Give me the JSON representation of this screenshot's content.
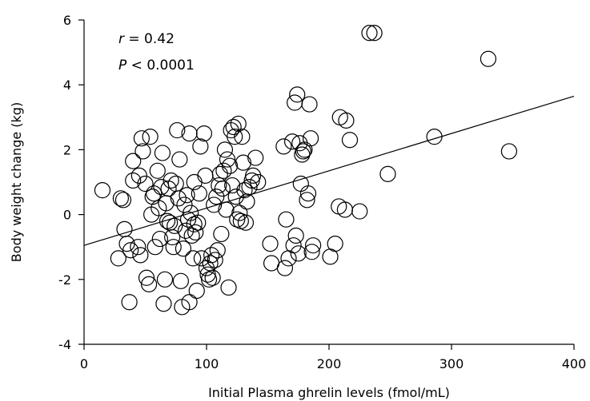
{
  "chart_data": {
    "type": "scatter",
    "title": "",
    "xlabel": "Initial Plasma ghrelin levels (fmol/mL)",
    "ylabel": "Body weight change (kg)",
    "xlim": [
      0,
      400
    ],
    "ylim": [
      -4,
      6
    ],
    "xticks": [
      0,
      100,
      200,
      300,
      400
    ],
    "yticks": [
      -4,
      -2,
      0,
      2,
      4,
      6
    ],
    "grid": false,
    "legend": "none",
    "annotations": {
      "r_symbol": "r",
      "r_rest": " = 0.42",
      "p_symbol": "P",
      "p_rest": " < 0.0001"
    },
    "trendline": {
      "x": [
        0,
        400
      ],
      "y": [
        -0.95,
        3.65
      ]
    },
    "marker_color": "#000000",
    "points": [
      [
        15,
        0.75
      ],
      [
        28,
        -1.35
      ],
      [
        30,
        0.5
      ],
      [
        32,
        0.45
      ],
      [
        33,
        -0.45
      ],
      [
        35,
        -0.9
      ],
      [
        37,
        -2.7
      ],
      [
        38,
        -1.1
      ],
      [
        40,
        1.05
      ],
      [
        40,
        1.65
      ],
      [
        44,
        -1.0
      ],
      [
        45,
        1.2
      ],
      [
        46,
        -1.25
      ],
      [
        47,
        2.35
      ],
      [
        48,
        1.95
      ],
      [
        50,
        0.95
      ],
      [
        51,
        -1.95
      ],
      [
        53,
        -2.15
      ],
      [
        54,
        2.4
      ],
      [
        55,
        0.0
      ],
      [
        56,
        0.55
      ],
      [
        57,
        0.65
      ],
      [
        58,
        -1.0
      ],
      [
        60,
        1.35
      ],
      [
        61,
        0.2
      ],
      [
        62,
        -0.75
      ],
      [
        63,
        0.85
      ],
      [
        64,
        1.9
      ],
      [
        65,
        -2.75
      ],
      [
        66,
        -2.0
      ],
      [
        67,
        0.35
      ],
      [
        68,
        -0.2
      ],
      [
        69,
        0.8
      ],
      [
        70,
        -0.25
      ],
      [
        71,
        1.05
      ],
      [
        72,
        -0.7
      ],
      [
        73,
        -1.0
      ],
      [
        74,
        -0.35
      ],
      [
        75,
        0.95
      ],
      [
        76,
        2.6
      ],
      [
        77,
        0.5
      ],
      [
        78,
        1.7
      ],
      [
        79,
        -2.05
      ],
      [
        80,
        -2.85
      ],
      [
        81,
        -1.05
      ],
      [
        82,
        0.3
      ],
      [
        83,
        -0.5
      ],
      [
        84,
        0.6
      ],
      [
        85,
        -0.15
      ],
      [
        86,
        -2.7
      ],
      [
        86,
        2.5
      ],
      [
        87,
        0.05
      ],
      [
        88,
        -0.65
      ],
      [
        89,
        -1.35
      ],
      [
        90,
        -0.3
      ],
      [
        90,
        1.0
      ],
      [
        91,
        -0.55
      ],
      [
        92,
        -2.35
      ],
      [
        93,
        -0.25
      ],
      [
        94,
        0.65
      ],
      [
        95,
        2.1
      ],
      [
        96,
        -1.35
      ],
      [
        98,
        2.5
      ],
      [
        99,
        1.2
      ],
      [
        100,
        -1.65
      ],
      [
        101,
        -1.85
      ],
      [
        102,
        -2.0
      ],
      [
        103,
        -1.5
      ],
      [
        104,
        -1.25
      ],
      [
        105,
        -1.95
      ],
      [
        106,
        0.3
      ],
      [
        107,
        -1.4
      ],
      [
        108,
        0.55
      ],
      [
        109,
        -1.1
      ],
      [
        110,
        0.9
      ],
      [
        111,
        1.25
      ],
      [
        112,
        -0.6
      ],
      [
        113,
        0.8
      ],
      [
        114,
        1.35
      ],
      [
        115,
        2.0
      ],
      [
        116,
        0.15
      ],
      [
        117,
        1.7
      ],
      [
        118,
        -2.25
      ],
      [
        119,
        1.5
      ],
      [
        120,
        2.6
      ],
      [
        121,
        0.9
      ],
      [
        122,
        2.7
      ],
      [
        123,
        2.4
      ],
      [
        124,
        0.55
      ],
      [
        125,
        -0.15
      ],
      [
        126,
        2.8
      ],
      [
        127,
        0.05
      ],
      [
        128,
        -0.2
      ],
      [
        129,
        2.4
      ],
      [
        130,
        1.6
      ],
      [
        131,
        0.75
      ],
      [
        132,
        -0.25
      ],
      [
        133,
        0.4
      ],
      [
        135,
        0.85
      ],
      [
        137,
        1.05
      ],
      [
        138,
        1.2
      ],
      [
        140,
        1.75
      ],
      [
        142,
        1.0
      ],
      [
        152,
        -0.9
      ],
      [
        153,
        -1.5
      ],
      [
        163,
        2.1
      ],
      [
        164,
        -1.65
      ],
      [
        165,
        -0.15
      ],
      [
        167,
        -1.35
      ],
      [
        170,
        2.25
      ],
      [
        171,
        -0.95
      ],
      [
        172,
        3.45
      ],
      [
        173,
        -0.65
      ],
      [
        174,
        3.7
      ],
      [
        175,
        -1.2
      ],
      [
        176,
        2.2
      ],
      [
        177,
        0.95
      ],
      [
        178,
        1.85
      ],
      [
        179,
        1.95
      ],
      [
        180,
        2.0
      ],
      [
        182,
        0.45
      ],
      [
        183,
        0.65
      ],
      [
        184,
        3.4
      ],
      [
        185,
        2.35
      ],
      [
        186,
        -1.15
      ],
      [
        187,
        -0.95
      ],
      [
        201,
        -1.3
      ],
      [
        205,
        -0.9
      ],
      [
        208,
        0.25
      ],
      [
        209,
        3.0
      ],
      [
        213,
        0.15
      ],
      [
        214,
        2.9
      ],
      [
        217,
        2.3
      ],
      [
        225,
        0.1
      ],
      [
        233,
        5.6
      ],
      [
        237,
        5.6
      ],
      [
        248,
        1.25
      ],
      [
        286,
        2.4
      ],
      [
        330,
        4.8
      ],
      [
        347,
        1.95
      ]
    ]
  }
}
